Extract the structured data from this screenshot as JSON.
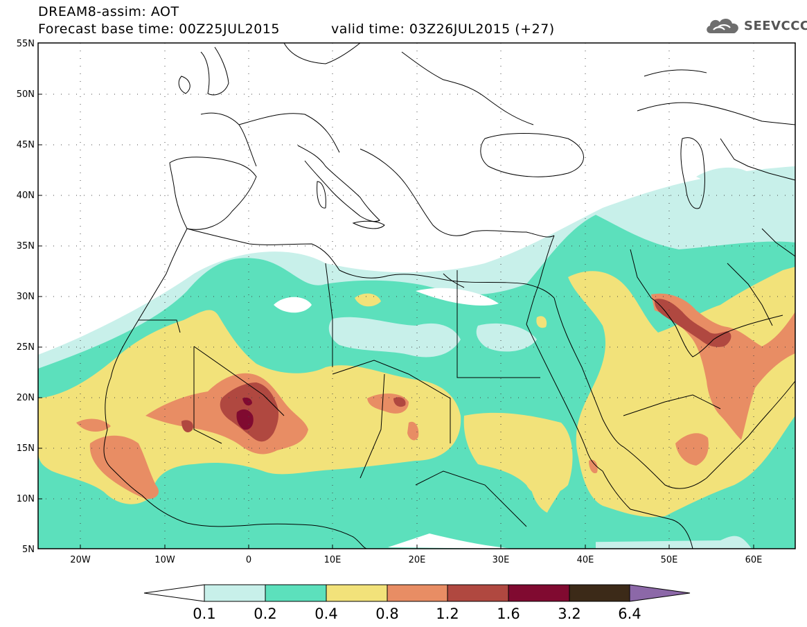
{
  "header": {
    "model_line": "DREAM8-assim: AOT",
    "base_time": "Forecast base time: 00Z25JUL2015",
    "valid_time": "valid time: 03Z26JUL2015 (+27)"
  },
  "logo": {
    "text": "SEEVCCC",
    "icon": "cloud-icon"
  },
  "map": {
    "lat_labels": [
      "55N",
      "50N",
      "45N",
      "40N",
      "35N",
      "30N",
      "25N",
      "20N",
      "15N",
      "10N",
      "5N"
    ],
    "lon_labels": [
      "20W",
      "10W",
      "0",
      "10E",
      "20E",
      "30E",
      "40E",
      "50E",
      "60E"
    ],
    "lat_range": [
      5,
      55
    ],
    "lon_range": [
      -25,
      65
    ],
    "grid": "dotted"
  },
  "colorbar": {
    "levels": [
      "0.1",
      "0.2",
      "0.4",
      "0.8",
      "1.2",
      "1.6",
      "3.2",
      "6.4"
    ],
    "colors": [
      "#c8f0ea",
      "#5ce0bc",
      "#f2e27a",
      "#e88d64",
      "#b04840",
      "#800a30",
      "#3c2a18",
      "#8c68a8"
    ],
    "under_color": "#ffffff"
  }
}
